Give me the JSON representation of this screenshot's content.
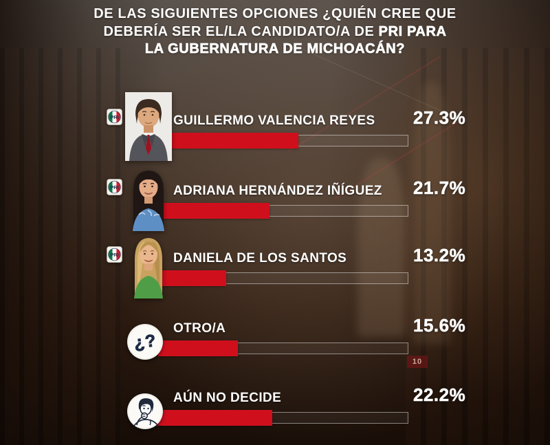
{
  "title": {
    "line1": "DE LAS SIGUIENTES OPCIONES ¿QUIÉN CREE QUE",
    "line2_regular": "DEBERÍA SER EL/LA CANDIDATO/A DE",
    "line2_bold": "PRI PARA",
    "line3": "LA GUBERNATURA DE MICHOACÁN?"
  },
  "chart_data": {
    "type": "bar",
    "orientation": "horizontal",
    "title": "DE LAS SIGUIENTES OPCIONES ¿QUIÉN CREE QUE DEBERÍA SER EL/LA CANDIDATO/A DE PRI PARA LA GUBERNATURA DE MICHOACÁN?",
    "categories": [
      "GUILLERMO VALENCIA REYES",
      "ADRIANA HERNÁNDEZ IÑÍGUEZ",
      "DANIELA DE LOS SANTOS",
      "OTRO/A",
      "AÚN NO DECIDE"
    ],
    "values": [
      27.3,
      21.7,
      13.2,
      15.6,
      22.2
    ],
    "value_labels": [
      "27.3%",
      "21.7%",
      "13.2%",
      "15.6%",
      "22.2%"
    ],
    "unit": "%",
    "axis_max_percent": 48.5,
    "bar_color": "#d00f1d",
    "grid": false,
    "legend": false
  },
  "rows": [
    {
      "name": "GUILLERMO VALENCIA REYES",
      "pct": "27.3%",
      "party_badge": "PRI",
      "avatar": "man-gray-suit-red-tie"
    },
    {
      "name": "ADRIANA HERNÁNDEZ IÑÍGUEZ",
      "pct": "21.7%",
      "party_badge": "PRI",
      "avatar": "woman-dark-hair-blue-top"
    },
    {
      "name": "DANIELA DE LOS SANTOS",
      "pct": "13.2%",
      "party_badge": "PRI",
      "avatar": "woman-blonde-green-top"
    },
    {
      "name": "OTRO/A",
      "pct": "15.6%",
      "icon": "question-mark"
    },
    {
      "name": "AÚN NO DECIDE",
      "pct": "22.2%",
      "icon": "thinking-person"
    }
  ],
  "icons": {
    "pri_label": "PRI",
    "question_glyph": "¿?"
  },
  "background": {
    "sign_text": "10"
  },
  "colors": {
    "bar_red": "#d00f1d",
    "pri_green": "#0c7f43",
    "pri_red": "#d2202b",
    "navy": "#223250",
    "title_white": "#ffffff"
  }
}
